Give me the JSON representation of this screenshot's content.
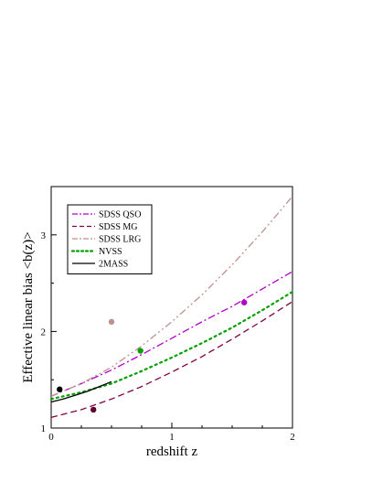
{
  "chart_data": {
    "type": "line",
    "xlabel": "redshift z",
    "ylabel": "Effective linear bias  <b(z)>",
    "xlim": [
      0,
      2
    ],
    "ylim": [
      1,
      3.5
    ],
    "xticks": [
      0,
      1,
      2
    ],
    "yticks": [
      1,
      2,
      3
    ],
    "x_tick_labels": [
      "0",
      "1",
      "2"
    ],
    "y_tick_labels": [
      "1",
      "2",
      "3"
    ],
    "legend_position": "top-left",
    "series": [
      {
        "name": "SDSS QSO",
        "color": "#b000c8",
        "style": "dash-dot",
        "x": [
          0,
          0.25,
          0.5,
          0.75,
          1.0,
          1.25,
          1.5,
          1.75,
          2.0
        ],
        "y": [
          1.33,
          1.46,
          1.6,
          1.76,
          1.93,
          2.1,
          2.26,
          2.44,
          2.62
        ]
      },
      {
        "name": "SDSS MG",
        "color": "#800040",
        "style": "dashed",
        "x": [
          0,
          0.25,
          0.5,
          0.75,
          1.0,
          1.25,
          1.5,
          1.75,
          2.0
        ],
        "y": [
          1.11,
          1.19,
          1.3,
          1.43,
          1.58,
          1.74,
          1.92,
          2.11,
          2.31
        ]
      },
      {
        "name": "SDSS LRG",
        "color": "#c09090",
        "style": "dash-dot-dot",
        "x": [
          0,
          0.25,
          0.5,
          0.75,
          1.0,
          1.25,
          1.5,
          1.75,
          2.0
        ],
        "y": [
          1.33,
          1.46,
          1.63,
          1.85,
          2.1,
          2.38,
          2.69,
          3.03,
          3.4
        ]
      },
      {
        "name": "NVSS",
        "color": "#00a000",
        "style": "dotted",
        "x": [
          0,
          0.25,
          0.5,
          0.75,
          1.0,
          1.25,
          1.5,
          1.75,
          2.0
        ],
        "y": [
          1.3,
          1.37,
          1.46,
          1.59,
          1.73,
          1.88,
          2.04,
          2.22,
          2.41
        ]
      },
      {
        "name": "2MASS",
        "color": "#000000",
        "style": "solid",
        "x": [
          0,
          0.1,
          0.2,
          0.3,
          0.4,
          0.5
        ],
        "y": [
          1.27,
          1.3,
          1.34,
          1.38,
          1.43,
          1.48
        ]
      }
    ],
    "points": [
      {
        "x": 0.07,
        "y": 1.4,
        "color": "#000000"
      },
      {
        "x": 0.35,
        "y": 1.19,
        "color": "#600030"
      },
      {
        "x": 0.5,
        "y": 2.1,
        "color": "#c09090"
      },
      {
        "x": 0.74,
        "y": 1.8,
        "color": "#00a000"
      },
      {
        "x": 1.6,
        "y": 2.3,
        "color": "#b000c8"
      }
    ]
  }
}
